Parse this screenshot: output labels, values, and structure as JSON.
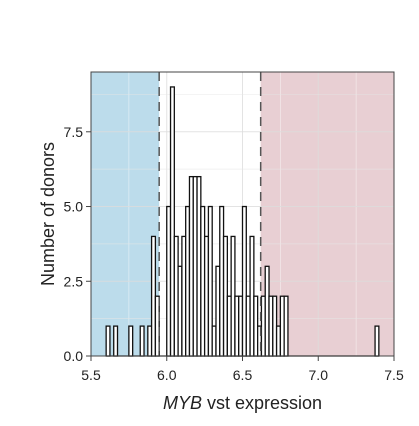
{
  "chart_data": {
    "type": "bar",
    "xlabel_italic": "MYB",
    "xlabel_rest": " vst expression",
    "ylabel": "Number of donors",
    "xlim": [
      5.5,
      7.5
    ],
    "ylim": [
      0,
      9.5
    ],
    "x_ticks": [
      "5.5",
      "6.0",
      "6.5",
      "7.0",
      "7.5"
    ],
    "y_ticks": [
      "0.0",
      "2.5",
      "5.0",
      "7.5"
    ],
    "bin_width": 0.025,
    "bins": [
      {
        "x": 5.6,
        "y": 1
      },
      {
        "x": 5.65,
        "y": 1
      },
      {
        "x": 5.7,
        "y": 0
      },
      {
        "x": 5.75,
        "y": 1
      },
      {
        "x": 5.825,
        "y": 1
      },
      {
        "x": 5.875,
        "y": 1
      },
      {
        "x": 5.9,
        "y": 4
      },
      {
        "x": 5.925,
        "y": 2
      },
      {
        "x": 5.95,
        "y": 0
      },
      {
        "x": 5.975,
        "y": 0
      },
      {
        "x": 6.0,
        "y": 5
      },
      {
        "x": 6.025,
        "y": 9
      },
      {
        "x": 6.05,
        "y": 4
      },
      {
        "x": 6.075,
        "y": 3
      },
      {
        "x": 6.1,
        "y": 4
      },
      {
        "x": 6.125,
        "y": 5
      },
      {
        "x": 6.15,
        "y": 6
      },
      {
        "x": 6.175,
        "y": 6
      },
      {
        "x": 6.2,
        "y": 6
      },
      {
        "x": 6.225,
        "y": 5
      },
      {
        "x": 6.25,
        "y": 4
      },
      {
        "x": 6.275,
        "y": 5
      },
      {
        "x": 6.3,
        "y": 1
      },
      {
        "x": 6.325,
        "y": 3
      },
      {
        "x": 6.35,
        "y": 5
      },
      {
        "x": 6.375,
        "y": 4
      },
      {
        "x": 6.4,
        "y": 2
      },
      {
        "x": 6.425,
        "y": 4
      },
      {
        "x": 6.45,
        "y": 2
      },
      {
        "x": 6.475,
        "y": 2
      },
      {
        "x": 6.5,
        "y": 5
      },
      {
        "x": 6.525,
        "y": 2
      },
      {
        "x": 6.55,
        "y": 4
      },
      {
        "x": 6.575,
        "y": 2
      },
      {
        "x": 6.6,
        "y": 1
      },
      {
        "x": 6.625,
        "y": 2
      },
      {
        "x": 6.65,
        "y": 3
      },
      {
        "x": 6.675,
        "y": 2
      },
      {
        "x": 6.7,
        "y": 2
      },
      {
        "x": 6.725,
        "y": 1
      },
      {
        "x": 6.75,
        "y": 2
      },
      {
        "x": 6.775,
        "y": 2
      },
      {
        "x": 7.375,
        "y": 1
      }
    ],
    "thresholds": [
      5.95,
      6.62
    ],
    "regions": [
      {
        "from": 5.5,
        "to": 5.95,
        "color": "#bcdceb"
      },
      {
        "from": 6.62,
        "to": 7.5,
        "color": "#e8cfd3"
      }
    ],
    "grid": true,
    "bar_fill": "#ffffff",
    "bar_edge": "#111111",
    "threshold_line_color": "#555555"
  }
}
